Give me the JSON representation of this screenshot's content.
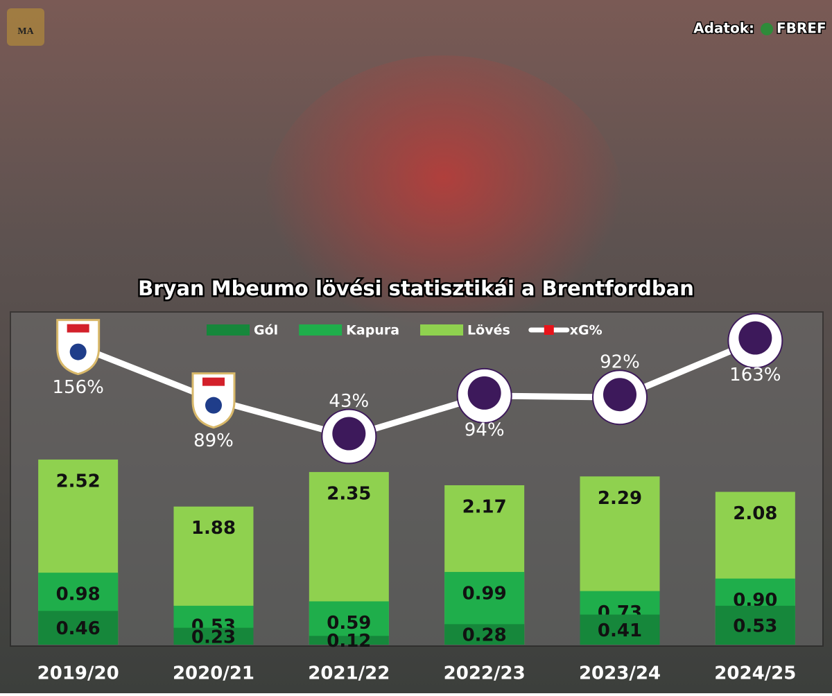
{
  "chart_data": {
    "type": "bar",
    "title": "Bryan Mbeumo lövési statisztikái a Brentfordban",
    "logo": "MA",
    "source_label": "Adatok:",
    "source": "FBREF",
    "categories": [
      "2019/20",
      "2020/21",
      "2021/22",
      "2022/23",
      "2023/24",
      "2024/25"
    ],
    "ylim": [
      0,
      4.5
    ],
    "y2lim": [
      0,
      200
    ],
    "series": [
      {
        "name": "Lövés",
        "color": "#8fd14f",
        "values": [
          2.52,
          1.88,
          2.35,
          2.17,
          2.29,
          2.08
        ]
      },
      {
        "name": "Kapura",
        "color": "#1fae4b",
        "values": [
          0.98,
          0.53,
          0.59,
          0.99,
          0.73,
          0.9
        ],
        "value_labels": [
          "0.98",
          "0.53",
          "0.59",
          "0.99",
          "0.73",
          "0.90"
        ]
      },
      {
        "name": "Gól",
        "color": "#16873b",
        "values": [
          0.46,
          0.23,
          0.12,
          0.28,
          0.41,
          0.53
        ]
      },
      {
        "name": "xG%",
        "type": "line",
        "axis": "y2",
        "color": "#ffffff",
        "marker_color": "#e8141b",
        "values": [
          156,
          89,
          43,
          94,
          92,
          163
        ],
        "value_labels": [
          "156%",
          "89%",
          "43%",
          "94%",
          "92%",
          "163%"
        ]
      }
    ],
    "legend_order": [
      2,
      1,
      0,
      3
    ]
  }
}
